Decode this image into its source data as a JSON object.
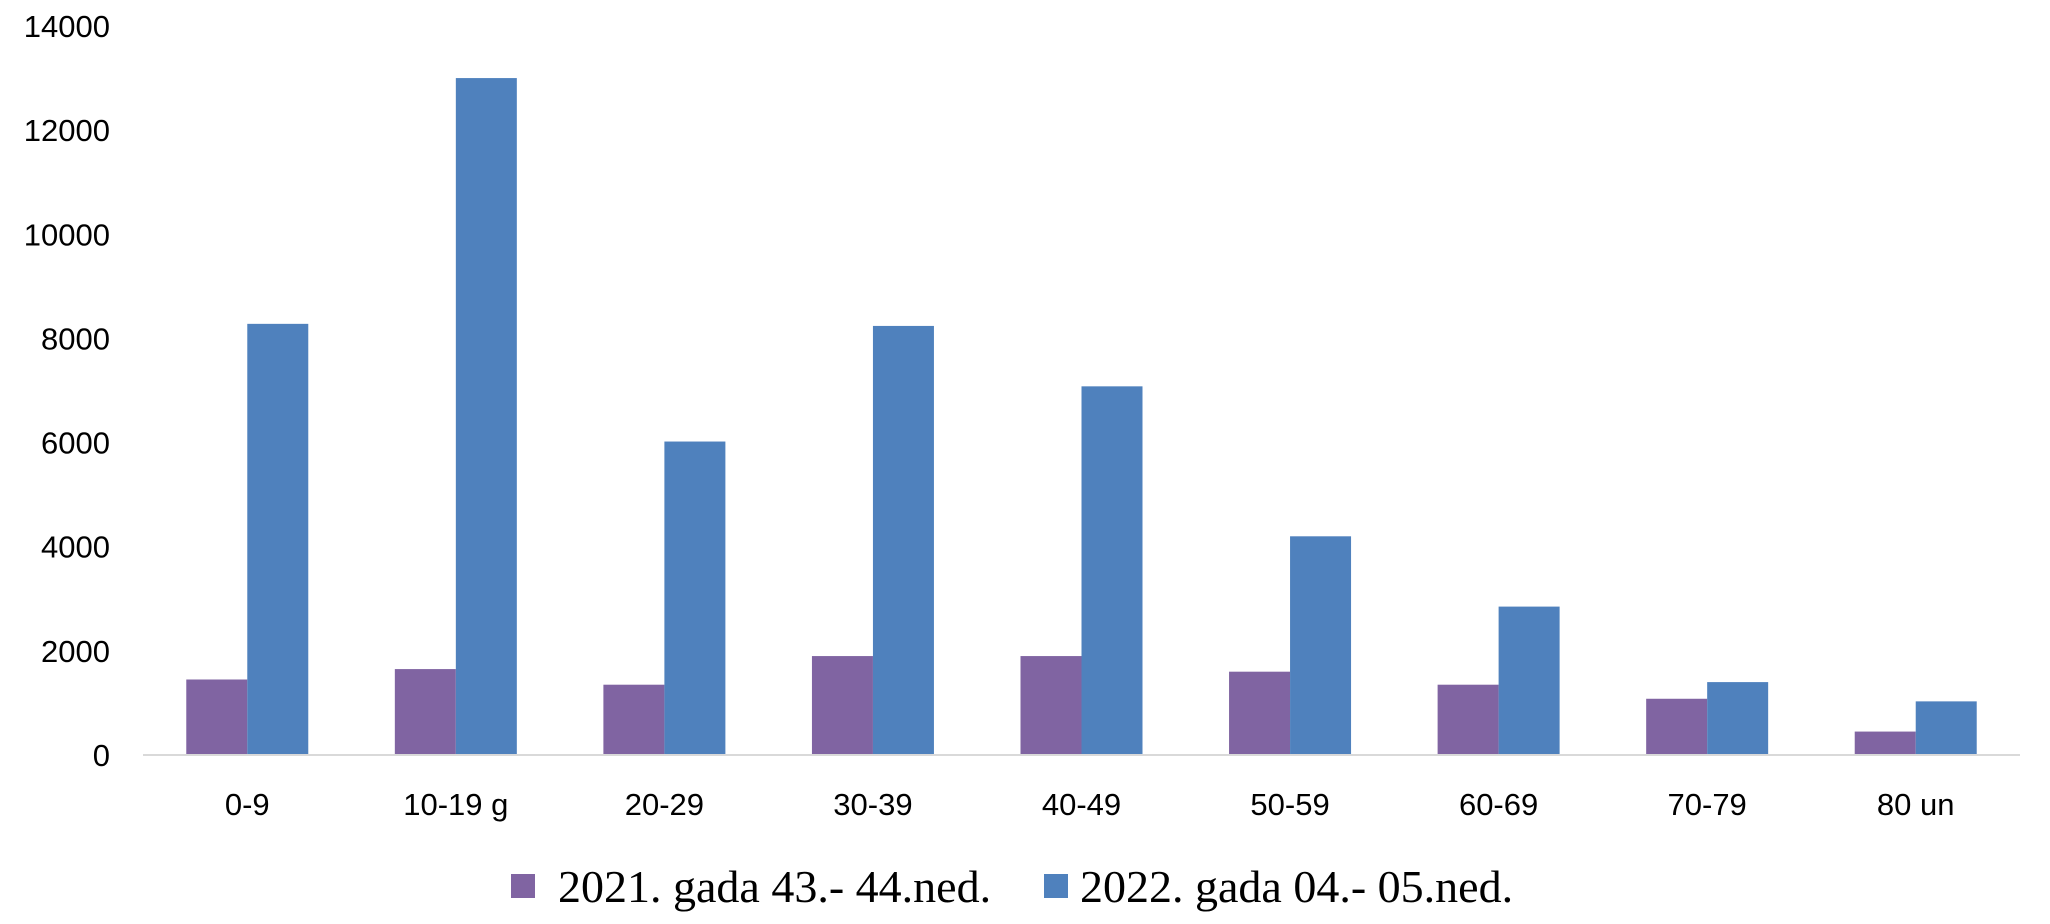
{
  "chart_data": {
    "type": "bar",
    "categories": [
      "0-9",
      "10-19 g",
      "20-29",
      "30-39",
      "40-49",
      "50-59",
      "60-69",
      "70-79",
      "80 un"
    ],
    "series": [
      {
        "name": "2021. gada 43.- 44.ned.",
        "color": "#8064a2",
        "values": [
          1450,
          1650,
          1350,
          1900,
          1900,
          1600,
          1350,
          1080,
          450
        ]
      },
      {
        "name": "2022. gada 04.- 05.ned.",
        "color": "#4f81bd",
        "values": [
          8280,
          13000,
          6020,
          8240,
          7080,
          4200,
          2850,
          1400,
          1030
        ]
      }
    ],
    "title": "",
    "xlabel": "",
    "ylabel": "",
    "ylim": [
      0,
      14000
    ],
    "yticks": [
      "0",
      "2000",
      "4000",
      "6000",
      "8000",
      "10000",
      "12000",
      "14000"
    ],
    "grid": false,
    "legend_position": "bottom"
  }
}
